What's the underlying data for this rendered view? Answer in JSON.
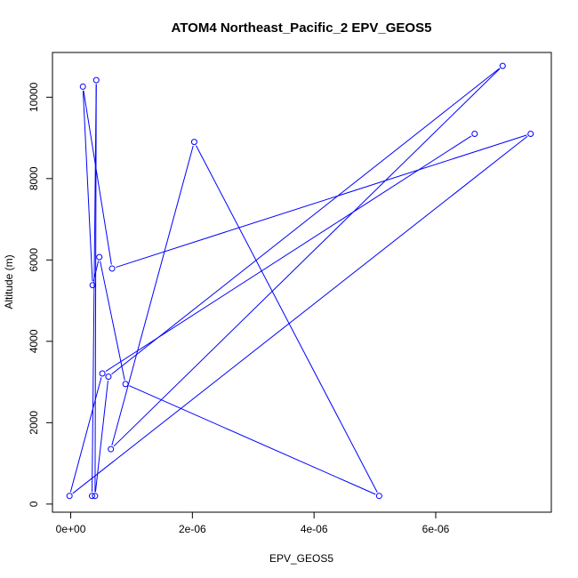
{
  "chart_data": {
    "type": "line",
    "title": "ATOM4 Northeast_Pacific_2 EPV_GEOS5",
    "xlabel": "EPV_GEOS5",
    "ylabel": "Altitude (m)",
    "xlim": [
      -3e-07,
      7.9e-06
    ],
    "ylim": [
      -200,
      11100
    ],
    "x_ticks": [
      0,
      2e-06,
      4e-06,
      6e-06
    ],
    "x_tick_labels": [
      "0e+00",
      "2e-06",
      "4e-06",
      "6e-06"
    ],
    "y_ticks": [
      0,
      2000,
      4000,
      6000,
      8000,
      10000
    ],
    "y_tick_labels": [
      "0",
      "2000",
      "4000",
      "6000",
      "8000",
      "10000"
    ],
    "series_color": "#0000ff",
    "points": [
      {
        "x": 3.5e-07,
        "y": 200
      },
      {
        "x": 4.2e-07,
        "y": 10420
      },
      {
        "x": 4e-07,
        "y": 200
      },
      {
        "x": 6.2e-07,
        "y": 3130
      },
      {
        "x": 7.1e-06,
        "y": 10770
      },
      {
        "x": 6.6e-07,
        "y": 1350
      },
      {
        "x": 2.03e-06,
        "y": 8900
      },
      {
        "x": 5.07e-06,
        "y": 200
      },
      {
        "x": 9e-07,
        "y": 2950
      },
      {
        "x": 4.7e-07,
        "y": 6070
      },
      {
        "x": 3.6e-07,
        "y": 5380
      },
      {
        "x": 2e-07,
        "y": 10260
      },
      {
        "x": 6.8e-07,
        "y": 5790
      },
      {
        "x": 7.56e-06,
        "y": 9100
      },
      {
        "x": -2e-08,
        "y": 200
      },
      {
        "x": 5.2e-07,
        "y": 3210
      },
      {
        "x": 6.64e-06,
        "y": 9100
      }
    ]
  }
}
